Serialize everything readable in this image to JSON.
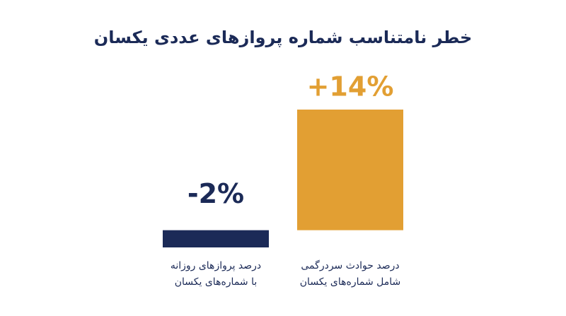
{
  "chart_data": {
    "type": "bar",
    "title": "خطر نامتناسب شماره پروازهای عددی یکسان",
    "categories": [
      [
        "درصد پروازهای روزانه",
        "با شماره‌های یکسان"
      ],
      [
        "درصد حوادث سردرگمی",
        "شامل شماره‌های یکسان"
      ]
    ],
    "values": [
      -2,
      14
    ],
    "value_labels": [
      "-2%",
      "+14%"
    ],
    "colors": [
      "#1b2a57",
      "#e29f33"
    ],
    "ylim": [
      -2,
      14
    ]
  }
}
